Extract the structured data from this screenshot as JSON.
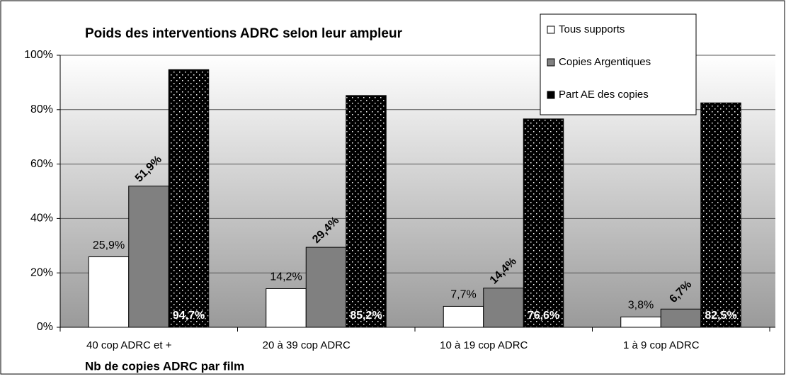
{
  "chart_data": {
    "type": "bar",
    "title": "Poids des interventions ADRC selon leur ampleur",
    "x_label": "Nb de copies ADRC par film",
    "categories": [
      "40 cop ADRC et +",
      "20 à 39 cop ADRC",
      "10 à 19 cop ADRC",
      "1 à 9 cop ADRC"
    ],
    "series": [
      {
        "name": "Tous supports",
        "color": "#ffffff",
        "values": [
          25.9,
          14.2,
          7.7,
          3.8
        ],
        "value_labels": [
          "25,9%",
          "14,2%",
          "7,7%",
          "3,8%"
        ]
      },
      {
        "name": "Copies Argentiques",
        "color": "#808080",
        "values": [
          51.9,
          29.4,
          14.4,
          6.7
        ],
        "value_labels": [
          "51,9%",
          "29,4%",
          "14,4%",
          "6,7%"
        ]
      },
      {
        "name": "Part AE des copies",
        "color": "#000000",
        "values": [
          94.7,
          85.2,
          76.6,
          82.5
        ],
        "value_labels": [
          "94,7%",
          "85,2%",
          "76,6%",
          "82,5%"
        ]
      }
    ],
    "ylim": [
      0,
      100
    ],
    "yticks": [
      {
        "value": 0,
        "label": "0%"
      },
      {
        "value": 20,
        "label": "20%"
      },
      {
        "value": 40,
        "label": "40%"
      },
      {
        "value": 60,
        "label": "60%"
      },
      {
        "value": 80,
        "label": "80%"
      },
      {
        "value": 100,
        "label": "100%"
      }
    ],
    "grid": true,
    "legend": "top-right"
  }
}
